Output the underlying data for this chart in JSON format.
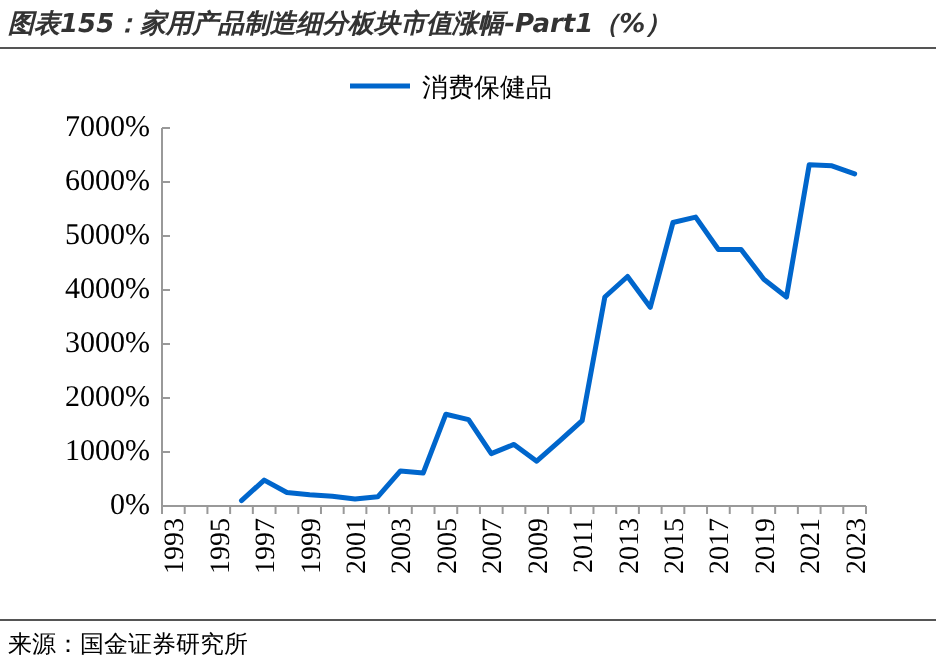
{
  "chart_data": {
    "type": "line",
    "title": "图表155：家用产品制造细分板块市值涨幅-Part1（%）",
    "categories": [
      "1993",
      null,
      "1995",
      null,
      "1997",
      null,
      "1999",
      null,
      "2001",
      null,
      "2003",
      null,
      "2005",
      null,
      "2007",
      null,
      "2009",
      null,
      "2011",
      null,
      "2013",
      null,
      "2015",
      null,
      "2017",
      null,
      "2019",
      null,
      "2021",
      null,
      "2023"
    ],
    "series": [
      {
        "name": "消费保健品",
        "color": "#0066cc",
        "values": [
          null,
          null,
          null,
          100,
          480,
          250,
          210,
          180,
          130,
          170,
          650,
          610,
          1700,
          1600,
          970,
          1140,
          830,
          1200,
          1580,
          3870,
          4250,
          3680,
          5250,
          5350,
          4750,
          4750,
          4200,
          3870,
          6320,
          6300,
          6150
        ]
      }
    ],
    "ylim": [
      0,
      7000
    ],
    "yticks": [
      {
        "value": 0,
        "label": "0%"
      },
      {
        "value": 1000,
        "label": "1000%"
      },
      {
        "value": 2000,
        "label": "2000%"
      },
      {
        "value": 3000,
        "label": "3000%"
      },
      {
        "value": 4000,
        "label": "4000%"
      },
      {
        "value": 5000,
        "label": "5000%"
      },
      {
        "value": 6000,
        "label": "6000%"
      },
      {
        "value": 7000,
        "label": "7000%"
      }
    ],
    "legend": "top",
    "annotations": [
      "来源：国金证券研究所"
    ]
  }
}
